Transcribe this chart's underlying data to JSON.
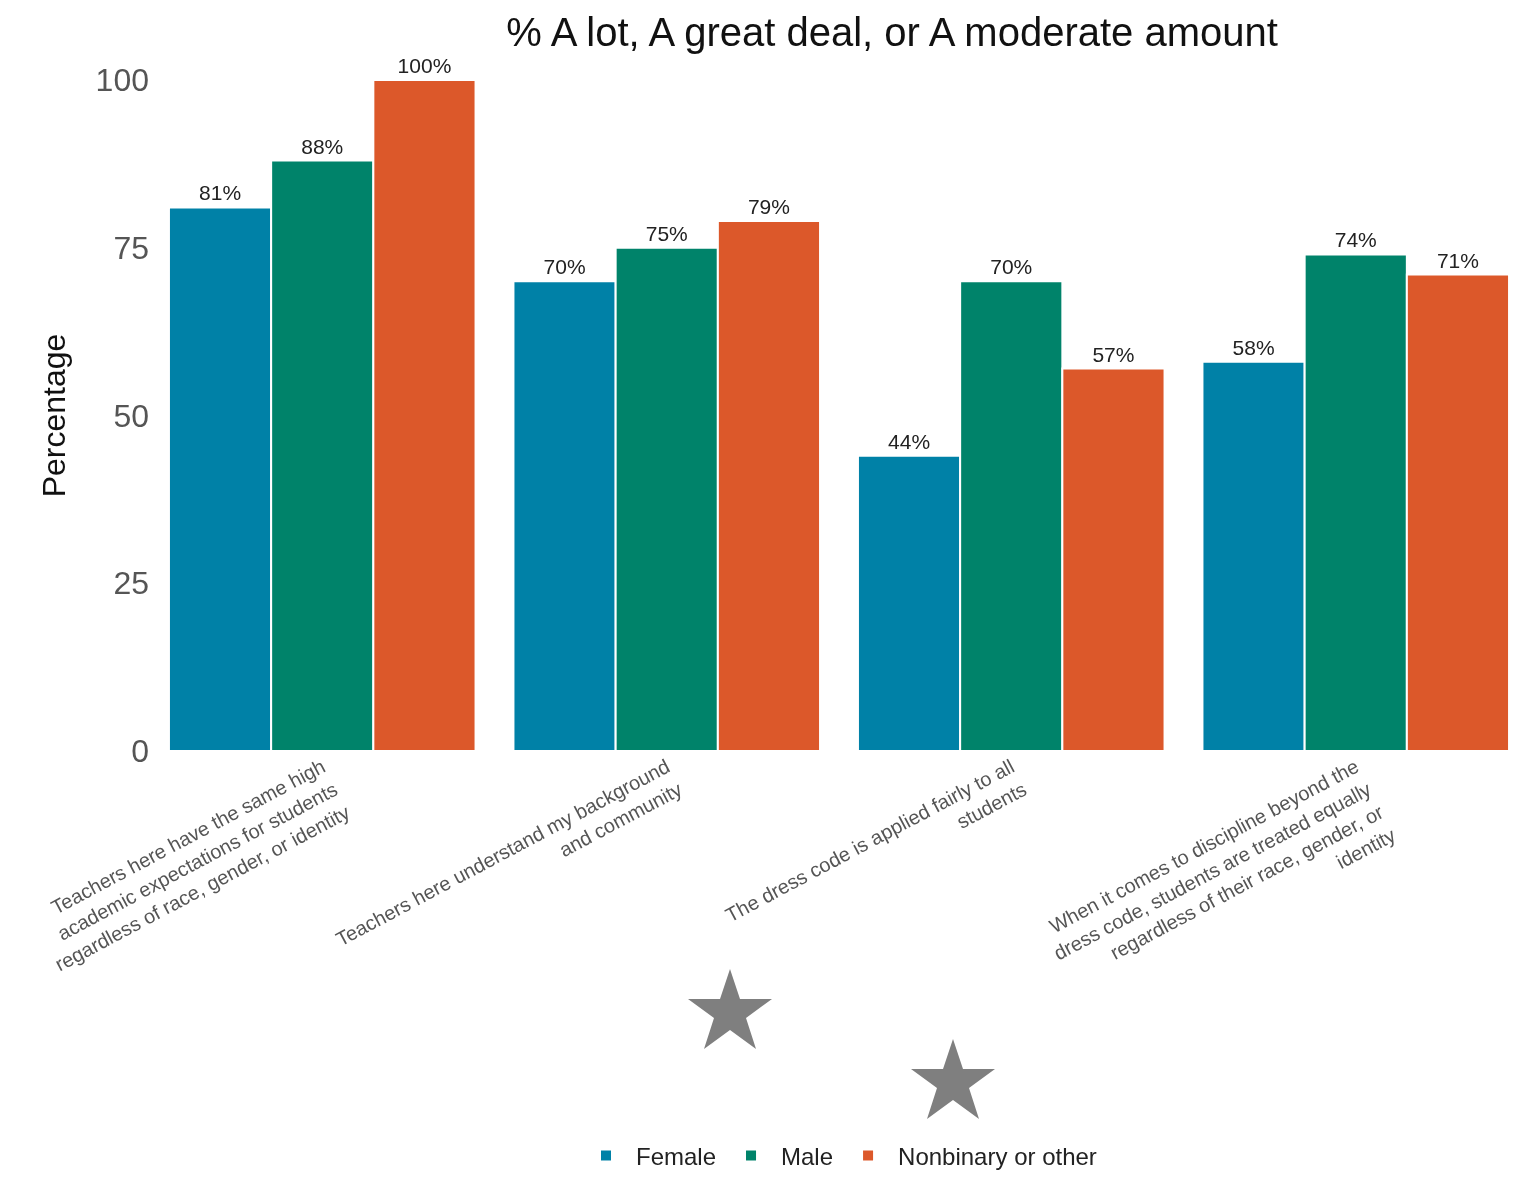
{
  "chart_data": {
    "type": "bar",
    "title": "% A lot, A great deal, or A moderate amount",
    "ylabel": "Percentage",
    "categories": [
      "Teachers here have the same high academic expectations for students regardless of race, gender, or identity",
      "Teachers here understand my background and community",
      "The dress code is applied fairly to all students",
      "When it comes to discipline beyond the dress code, students are treated equally regardless of their race, gender, or identity"
    ],
    "series": [
      {
        "name": "Female",
        "color": "#0081a7",
        "values": [
          81,
          70,
          44,
          58
        ],
        "value_labels": [
          "81%",
          "70%",
          "44%",
          "58%"
        ]
      },
      {
        "name": "Male",
        "color": "#00836a",
        "values": [
          88,
          75,
          70,
          74
        ],
        "value_labels": [
          "88%",
          "75%",
          "70%",
          "74%"
        ]
      },
      {
        "name": "Nonbinary or other",
        "color": "#dc582a",
        "values": [
          100,
          79,
          57,
          71
        ],
        "value_labels": [
          "100%",
          "79%",
          "57%",
          "71%"
        ]
      }
    ],
    "ylim": [
      0,
      100
    ],
    "yticks": [
      0,
      25,
      50,
      75,
      100
    ],
    "grid": false,
    "legend": "bottom"
  }
}
